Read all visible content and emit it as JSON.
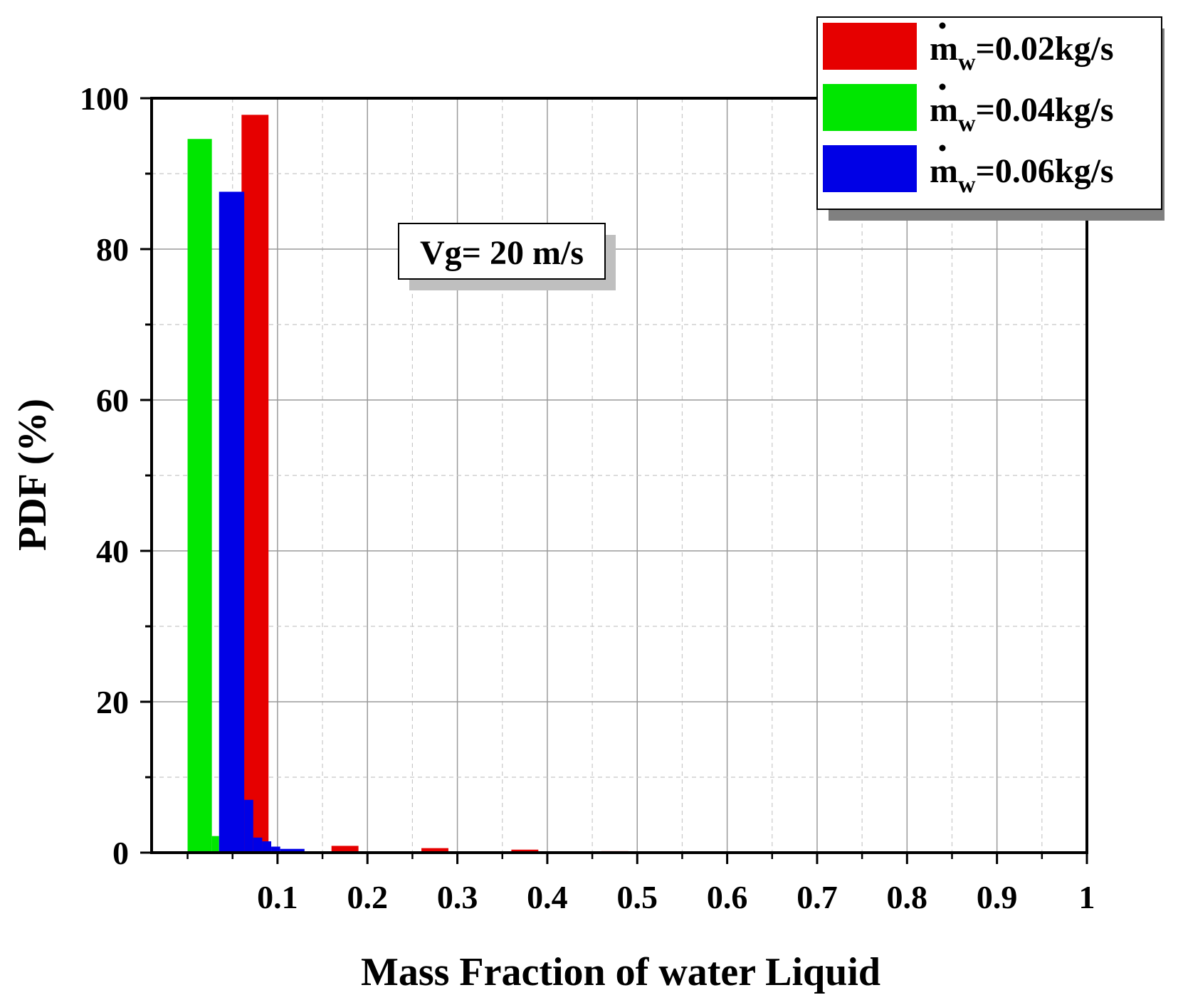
{
  "chart_data": {
    "type": "bar",
    "title": "",
    "xlabel": "Mass Fraction of water Liquid",
    "ylabel": "PDF (%)",
    "xlim": [
      -0.04,
      1.0
    ],
    "ylim": [
      0,
      100
    ],
    "xticks": [
      0.1,
      0.2,
      0.3,
      0.4,
      0.5,
      0.6,
      0.7,
      0.8,
      0.9,
      1
    ],
    "xtick_labels": [
      "0.1",
      "0.2",
      "0.3",
      "0.4",
      "0.5",
      "0.6",
      "0.7",
      "0.8",
      "0.9",
      "1"
    ],
    "yticks": [
      0,
      20,
      40,
      60,
      80,
      100
    ],
    "ytick_labels": [
      "0",
      "20",
      "40",
      "60",
      "80",
      "100"
    ],
    "grid": true,
    "legend_position": "top-right",
    "annotation": "Vg= 20 m/s",
    "series": [
      {
        "name": "m_w=0.02kg/s",
        "legend": {
          "base": "m",
          "sub": "w",
          "rest": "=0.02kg/s"
        },
        "color": "#e60000",
        "bars": [
          {
            "x0": 0.06,
            "x1": 0.09,
            "y": 97.8
          },
          {
            "x0": 0.16,
            "x1": 0.19,
            "y": 0.9
          },
          {
            "x0": 0.26,
            "x1": 0.29,
            "y": 0.6
          },
          {
            "x0": 0.36,
            "x1": 0.39,
            "y": 0.4
          },
          {
            "x0": 0.46,
            "x1": 0.49,
            "y": 0.2
          }
        ]
      },
      {
        "name": "m_w=0.04kg/s",
        "legend": {
          "base": "m",
          "sub": "w",
          "rest": "=0.04kg/s"
        },
        "color": "#00e600",
        "bars": [
          {
            "x0": 0.0,
            "x1": 0.027,
            "y": 94.6
          },
          {
            "x0": 0.027,
            "x1": 0.035,
            "y": 2.2
          }
        ]
      },
      {
        "name": "m_w=0.06kg/s",
        "legend": {
          "base": "m",
          "sub": "w",
          "rest": "=0.06kg/s"
        },
        "color": "#0000e6",
        "bars": [
          {
            "x0": 0.035,
            "x1": 0.063,
            "y": 87.6
          },
          {
            "x0": 0.063,
            "x1": 0.073,
            "y": 7.0
          },
          {
            "x0": 0.073,
            "x1": 0.083,
            "y": 2.0
          },
          {
            "x0": 0.083,
            "x1": 0.093,
            "y": 1.5
          },
          {
            "x0": 0.093,
            "x1": 0.103,
            "y": 0.8
          },
          {
            "x0": 0.103,
            "x1": 0.13,
            "y": 0.5
          }
        ]
      }
    ]
  }
}
